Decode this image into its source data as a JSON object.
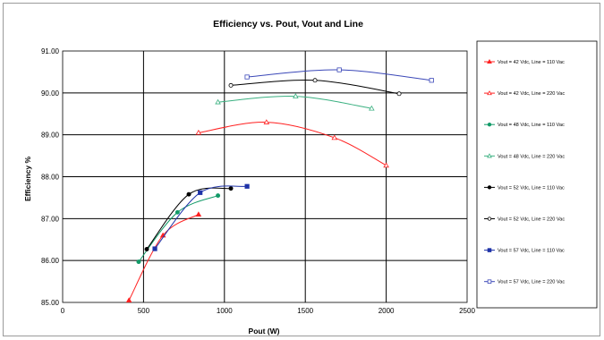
{
  "chart_data": {
    "type": "scatter",
    "title": "Efficiency vs. Pout, Vout and Line",
    "xlabel": "Pout (W)",
    "ylabel": "Efficiency %",
    "xlim": [
      0,
      2500
    ],
    "ylim": [
      85.0,
      91.0
    ],
    "xticks": [
      "0",
      "500",
      "1000",
      "1500",
      "2000",
      "2500"
    ],
    "yticks": [
      "85.00",
      "86.00",
      "87.00",
      "88.00",
      "89.00",
      "90.00",
      "91.00"
    ],
    "grid": true,
    "legend_position": "right",
    "series": [
      {
        "name": "Vout = 42 Vdc, Line = 110 Vac",
        "color": "#ff2020",
        "marker": "triangle",
        "filled": true,
        "x": [
          410,
          620,
          840
        ],
        "y": [
          85.05,
          86.6,
          87.1
        ]
      },
      {
        "name": "Vout = 42 Vdc, Line = 220 Vac",
        "color": "#ff2020",
        "marker": "triangle",
        "filled": false,
        "x": [
          840,
          1260,
          1680,
          2000
        ],
        "y": [
          89.05,
          89.3,
          88.93,
          88.27
        ]
      },
      {
        "name": "Vout = 48 Vdc, Line = 110 Vac",
        "color": "#129a68",
        "marker": "circle",
        "filled": true,
        "x": [
          470,
          710,
          960
        ],
        "y": [
          85.97,
          87.15,
          87.55
        ]
      },
      {
        "name": "Vout = 48 Vdc, Line = 220 Vac",
        "color": "#3ab080",
        "marker": "triangle",
        "filled": false,
        "x": [
          960,
          1440,
          1910
        ],
        "y": [
          89.78,
          89.92,
          89.63
        ]
      },
      {
        "name": "Vout = 52 Vdc, Line = 110 Vac",
        "color": "#000000",
        "marker": "circle",
        "filled": true,
        "x": [
          520,
          780,
          1040
        ],
        "y": [
          86.27,
          87.58,
          87.72
        ]
      },
      {
        "name": "Vout = 52 Vdc, Line = 220 Vac",
        "color": "#000000",
        "marker": "circle",
        "filled": false,
        "x": [
          1040,
          1560,
          2080
        ],
        "y": [
          90.18,
          90.3,
          89.98
        ]
      },
      {
        "name": "Vout = 57 Vdc, Line = 110 Vac",
        "color": "#1f33a8",
        "marker": "square",
        "filled": true,
        "x": [
          570,
          850,
          1140
        ],
        "y": [
          86.28,
          87.62,
          87.77
        ]
      },
      {
        "name": "Vout = 57 Vdc, Line = 220 Vac",
        "color": "#3b48b8",
        "marker": "square",
        "filled": false,
        "x": [
          1140,
          1710,
          2280
        ],
        "y": [
          90.38,
          90.55,
          90.3
        ]
      }
    ]
  }
}
